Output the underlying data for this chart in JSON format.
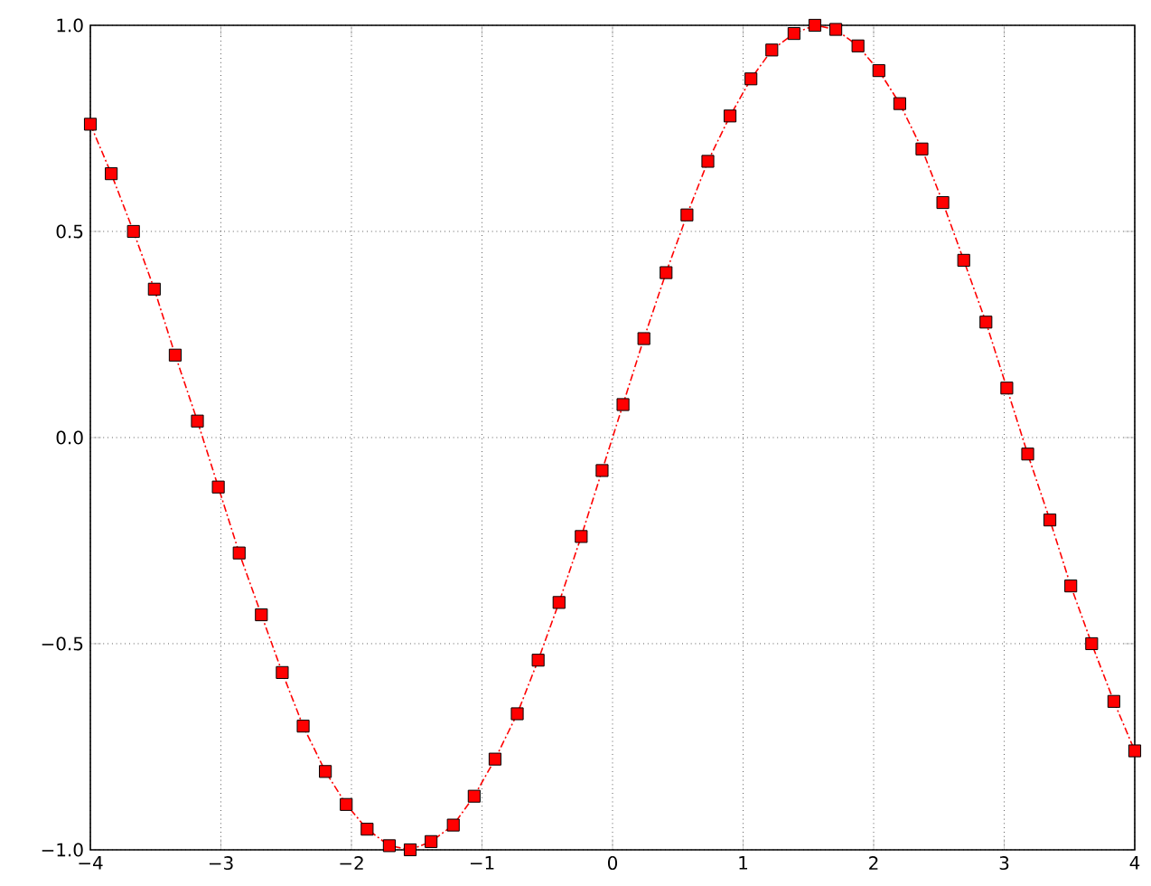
{
  "chart_data": {
    "type": "line",
    "x": [
      -4.0,
      -3.84,
      -3.67,
      -3.51,
      -3.35,
      -3.18,
      -3.02,
      -2.86,
      -2.69,
      -2.53,
      -2.37,
      -2.2,
      -2.04,
      -1.88,
      -1.71,
      -1.55,
      -1.39,
      -1.22,
      -1.06,
      -0.9,
      -0.73,
      -0.57,
      -0.41,
      -0.24,
      -0.08,
      0.08,
      0.24,
      0.41,
      0.57,
      0.73,
      0.9,
      1.06,
      1.22,
      1.39,
      1.55,
      1.71,
      1.88,
      2.04,
      2.2,
      2.37,
      2.53,
      2.69,
      2.86,
      3.02,
      3.18,
      3.35,
      3.51,
      3.67,
      3.84,
      4.0
    ],
    "series": [
      {
        "color": "#ff0000",
        "values": [
          0.76,
          0.64,
          0.5,
          0.36,
          0.2,
          0.04,
          -0.12,
          -0.28,
          -0.43,
          -0.57,
          -0.7,
          -0.81,
          -0.89,
          -0.95,
          -0.99,
          -1.0,
          -0.98,
          -0.94,
          -0.87,
          -0.78,
          -0.67,
          -0.54,
          -0.4,
          -0.24,
          -0.08,
          0.08,
          0.24,
          0.4,
          0.54,
          0.67,
          0.78,
          0.87,
          0.94,
          0.98,
          1.0,
          0.99,
          0.95,
          0.89,
          0.81,
          0.7,
          0.57,
          0.43,
          0.28,
          0.12,
          -0.04,
          -0.2,
          -0.36,
          -0.5,
          -0.64,
          -0.76
        ]
      }
    ],
    "xlim": [
      -4,
      4
    ],
    "ylim": [
      -1,
      1
    ],
    "xticks": [
      {
        "value": -4,
        "label": "−4"
      },
      {
        "value": -3,
        "label": "−3"
      },
      {
        "value": -2,
        "label": "−2"
      },
      {
        "value": -1,
        "label": "−1"
      },
      0,
      1,
      2,
      3,
      4
    ],
    "yticks": [
      {
        "value": -1,
        "label": "−1.0"
      },
      {
        "value": -0.5,
        "label": "−0.5"
      },
      {
        "value": 0,
        "label": "0.0"
      },
      {
        "value": 0.5,
        "label": "0.5"
      },
      {
        "value": 1,
        "label": "1.0"
      }
    ],
    "grid": true,
    "marker": "square",
    "line_style": "dashdot"
  }
}
